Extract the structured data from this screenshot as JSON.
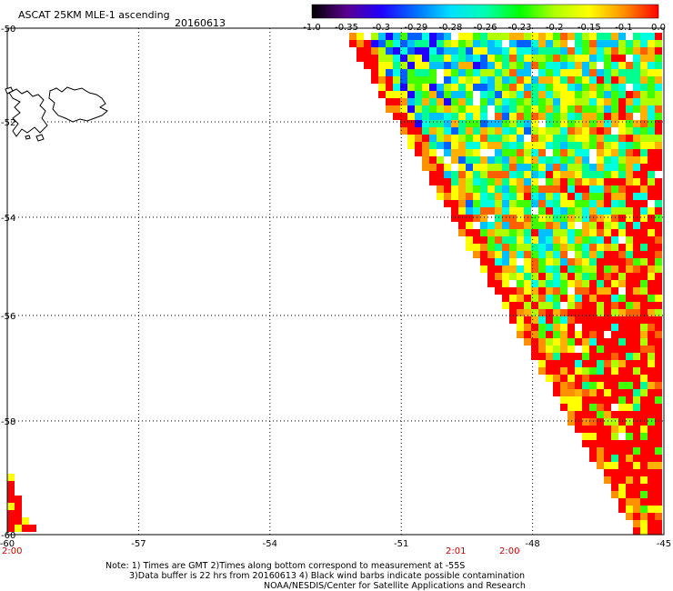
{
  "header": {
    "product": "ASCAT 25KM MLE-1 ascending",
    "date": "20160613"
  },
  "colorbar": {
    "labels": [
      "-1.0",
      "-0.35",
      "-0.3",
      "-0.29",
      "-0.28",
      "-0.26",
      "-0.23",
      "-0.2",
      "-0.15",
      "-0.1",
      "0.0"
    ],
    "stops": [
      "#000000",
      "#5a0090",
      "#2000ff",
      "#0070ff",
      "#00e0ff",
      "#00ffb0",
      "#00ff00",
      "#b0ff00",
      "#ffff00",
      "#ff9000",
      "#ff0000"
    ]
  },
  "map": {
    "lon_labels": [
      "-60",
      "-57",
      "-54",
      "-51",
      "-48",
      "-45"
    ],
    "lat_labels": [
      "-50",
      "-52",
      "-54",
      "-56",
      "-58",
      "-60"
    ],
    "lon_range": [
      -60,
      -45
    ],
    "lat_range": [
      -60,
      -50
    ],
    "swath_colors": [
      "#ff0000",
      "#ff6000",
      "#ffb000",
      "#ffff00",
      "#b0ff00",
      "#40ff00",
      "#00ff90",
      "#00ffe0",
      "#00c0ff",
      "#0060ff",
      "#2000ff",
      "#ffffff"
    ]
  },
  "times": {
    "left": "2:00",
    "t1": "2:01",
    "t2": "2:00"
  },
  "notes": {
    "line1": "Note: 1) Times are GMT 2)Times along bottom correspond to measurement at -55S",
    "line2": "3)Data buffer is 22 hrs from 20160613 4) Black wind barbs indicate possible contamination",
    "line3": "NOAA/NESDIS/Center for Satellite Applications and Research"
  }
}
